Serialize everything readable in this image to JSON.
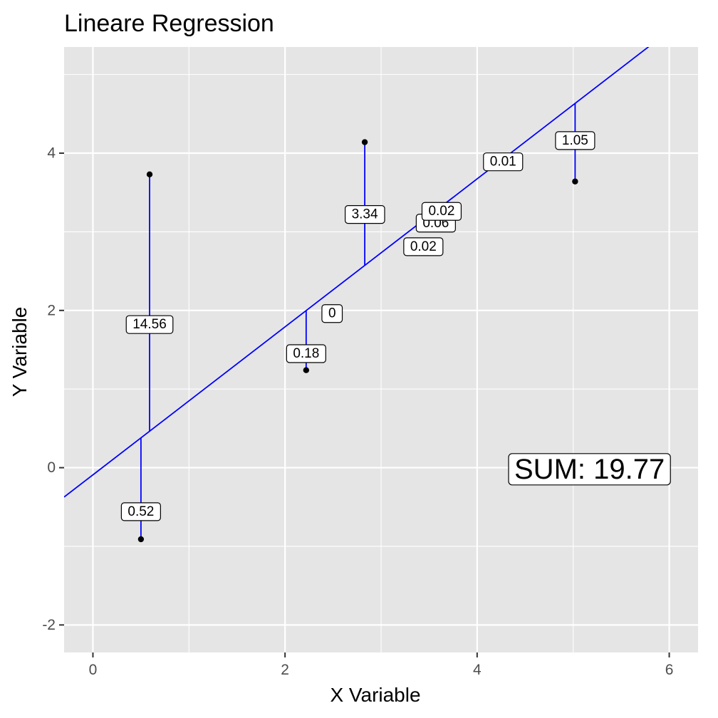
{
  "chart_data": {
    "type": "scatter",
    "title": "Lineare Regression",
    "xlabel": "X Variable",
    "ylabel": "Y Variable",
    "xlim": [
      -0.3,
      6.3
    ],
    "ylim": [
      -2.35,
      5.35
    ],
    "x_ticks": [
      0,
      2,
      4,
      6
    ],
    "y_ticks": [
      -2,
      0,
      2,
      4
    ],
    "x_tick_labels": [
      "0",
      "2",
      "4",
      "6"
    ],
    "y_tick_labels": [
      "-2",
      "0",
      "2",
      "4"
    ],
    "grid": true,
    "regression_line": {
      "intercept": -0.0912,
      "slope": 0.9411,
      "color": "#0000ff"
    },
    "points": [
      {
        "x": 0.5,
        "y": -0.91
      },
      {
        "x": 0.59,
        "y": 3.73
      },
      {
        "x": 2.22,
        "y": 1.24
      },
      {
        "x": 2.83,
        "y": 4.14
      },
      {
        "x": 5.02,
        "y": 3.64
      }
    ],
    "residual_labels": [
      {
        "text": "14.56",
        "x": 0.59,
        "y": 1.82
      },
      {
        "text": "0.52",
        "x": 0.5,
        "y": -0.56
      },
      {
        "text": "0.18",
        "x": 2.22,
        "y": 1.45
      },
      {
        "text": "3.34",
        "x": 2.83,
        "y": 3.22
      },
      {
        "text": "0",
        "x": 2.49,
        "y": 1.96
      },
      {
        "text": "0.02",
        "x": 3.44,
        "y": 2.81
      },
      {
        "text": "0.06",
        "x": 3.57,
        "y": 3.11
      },
      {
        "text": "0.02",
        "x": 3.63,
        "y": 3.26
      },
      {
        "text": "0.01",
        "x": 4.27,
        "y": 3.89
      },
      {
        "text": "1.05",
        "x": 5.02,
        "y": 4.16
      }
    ],
    "sum_label": {
      "text": "SUM: 19.77",
      "x": 5.17,
      "y": -0.02
    },
    "colors": {
      "panel": "#e5e5e5",
      "grid": "#ffffff",
      "line": "#0000ff",
      "point": "#000000"
    }
  }
}
